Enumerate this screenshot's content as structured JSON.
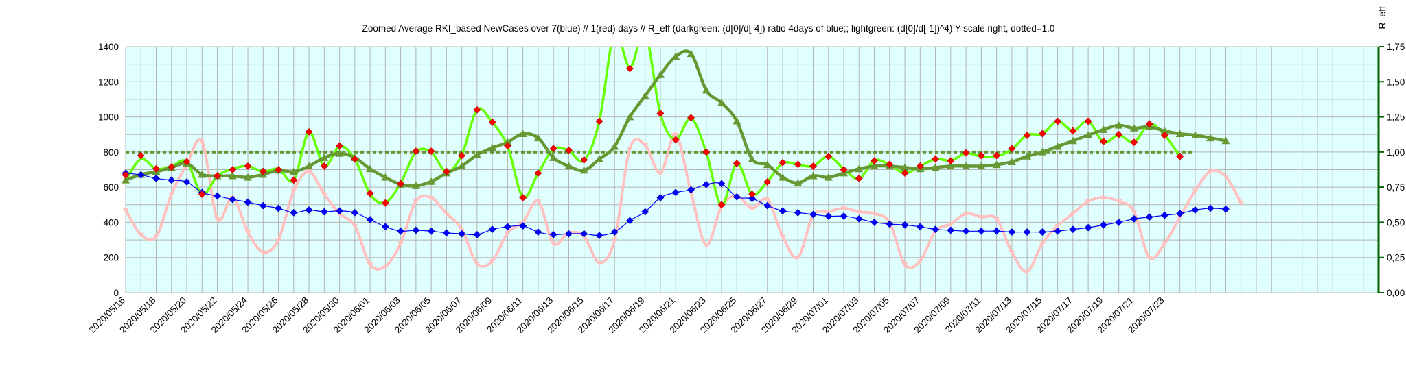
{
  "chart_data": {
    "type": "line",
    "title": "Zoomed Average RKI_based NewCases over 7(blue) // 1(red) days //  R_eff (darkgreen: (d[0]/d[-4]) ratio 4days of blue;; lightgreen: (d[0]/d[-1])^4) Y-scale right, dotted=1.0",
    "y2label": "R_eff",
    "ylim": [
      0,
      1400
    ],
    "y2lim": [
      0,
      1.75
    ],
    "y_ticks": [
      "0",
      "200",
      "400",
      "600",
      "800",
      "1000",
      "1200",
      "1400"
    ],
    "y2_ticks": [
      "0,00",
      "0,25",
      "0,50",
      "0,75",
      "1,00",
      "1,25",
      "1,50",
      "1,75"
    ],
    "x_tick_labels": [
      "2020/05/16",
      "2020/05/18",
      "2020/05/20",
      "2020/05/22",
      "2020/05/24",
      "2020/05/26",
      "2020/05/28",
      "2020/05/30",
      "2020/06/01",
      "2020/06/03",
      "2020/06/05",
      "2020/06/07",
      "2020/06/09",
      "2020/06/11",
      "2020/06/13",
      "2020/06/15",
      "2020/06/17",
      "2020/06/19",
      "2020/06/21",
      "2020/06/23",
      "2020/06/25",
      "2020/06/27",
      "2020/06/29",
      "2020/07/01",
      "2020/07/03",
      "2020/07/05",
      "2020/07/07",
      "2020/07/09",
      "2020/07/11",
      "2020/07/13",
      "2020/07/15",
      "2020/07/17",
      "2020/07/19",
      "2020/07/21",
      "2020/07/23"
    ],
    "x_start": "2020/05/16",
    "x_categories_total": 82,
    "grid": true,
    "dotted_reference_r": 1.0,
    "series": [
      {
        "axis": "left",
        "color": "#0000ff",
        "marker": "diamond",
        "values": [
          680,
          670,
          650,
          640,
          630,
          570,
          550,
          530,
          515,
          495,
          480,
          455,
          470,
          460,
          465,
          455,
          415,
          375,
          350,
          355,
          350,
          340,
          335,
          330,
          360,
          375,
          380,
          345,
          330,
          335,
          335,
          325,
          345,
          410,
          460,
          540,
          570,
          585,
          615,
          620,
          545,
          535,
          495,
          465,
          455,
          445,
          435,
          435,
          420,
          400,
          390,
          385,
          375,
          360,
          355,
          350,
          350,
          350,
          345,
          345,
          345,
          350,
          360,
          370,
          385,
          400,
          420,
          430,
          440,
          450,
          470,
          480,
          475
        ]
      },
      {
        "axis": "left",
        "color": "#ff0000",
        "marker": "diamond",
        "values": [
          670,
          780,
          705,
          715,
          745,
          560,
          665,
          700,
          720,
          690,
          700,
          640,
          915,
          720,
          835,
          760,
          565,
          510,
          620,
          805,
          805,
          690,
          780,
          1040,
          970,
          835,
          540,
          680,
          820,
          810,
          755,
          975,
          1450,
          1275,
          1450,
          1020,
          870,
          995,
          800,
          500,
          735,
          560,
          630,
          740,
          730,
          720,
          775,
          700,
          650,
          750,
          730,
          680,
          720,
          760,
          750,
          795,
          780,
          780,
          820,
          895,
          905,
          975,
          920,
          975,
          860,
          900,
          855,
          960,
          895,
          775
        ]
      },
      {
        "axis": "left",
        "color": "#ffc0c0",
        "marker": "star",
        "values": [
          470,
          330,
          320,
          560,
          730,
          860,
          420,
          540,
          345,
          230,
          300,
          580,
          690,
          560,
          450,
          380,
          160,
          150,
          280,
          520,
          540,
          450,
          360,
          165,
          180,
          340,
          400,
          520,
          280,
          340,
          320,
          170,
          300,
          820,
          840,
          680,
          900,
          570,
          270,
          490,
          550,
          480,
          530,
          320,
          200,
          440,
          460,
          480,
          460,
          450,
          400,
          160,
          180,
          350,
          390,
          450,
          430,
          420,
          230,
          120,
          280,
          380,
          450,
          520,
          540,
          520,
          460,
          200,
          280,
          430,
          580,
          690,
          660,
          510
        ]
      },
      {
        "axis": "right",
        "color": "#66ff00",
        "marker": "none",
        "values": [
          0.8,
          0.95,
          0.88,
          0.9,
          0.93,
          0.7,
          0.83,
          0.88,
          0.9,
          0.86,
          0.88,
          0.8,
          1.14,
          0.9,
          1.04,
          0.95,
          0.7,
          0.64,
          0.78,
          1.0,
          1.0,
          0.86,
          0.98,
          1.3,
          1.21,
          1.04,
          0.68,
          0.85,
          1.02,
          1.01,
          0.94,
          1.22,
          1.85,
          1.6,
          1.85,
          1.27,
          1.09,
          1.24,
          1.0,
          0.62,
          0.92,
          0.7,
          0.79,
          0.92,
          0.91,
          0.9,
          0.97,
          0.88,
          0.81,
          0.94,
          0.91,
          0.85,
          0.9,
          0.95,
          0.94,
          0.99,
          0.97,
          0.97,
          1.02,
          1.12,
          1.13,
          1.22,
          1.15,
          1.22,
          1.07,
          1.12,
          1.07,
          1.2,
          1.12,
          0.97
        ]
      },
      {
        "axis": "right",
        "color": "#669933",
        "marker": "triangle",
        "values": [
          0.8,
          0.84,
          0.86,
          0.89,
          0.92,
          0.84,
          0.83,
          0.83,
          0.82,
          0.84,
          0.87,
          0.86,
          0.9,
          0.96,
          0.99,
          0.96,
          0.88,
          0.82,
          0.77,
          0.76,
          0.79,
          0.85,
          0.9,
          0.98,
          1.03,
          1.07,
          1.13,
          1.1,
          0.96,
          0.9,
          0.87,
          0.95,
          1.04,
          1.25,
          1.4,
          1.55,
          1.68,
          1.7,
          1.44,
          1.35,
          1.22,
          0.95,
          0.91,
          0.82,
          0.78,
          0.83,
          0.82,
          0.85,
          0.88,
          0.9,
          0.9,
          0.89,
          0.88,
          0.89,
          0.9,
          0.9,
          0.9,
          0.91,
          0.93,
          0.97,
          1.0,
          1.04,
          1.08,
          1.12,
          1.16,
          1.19,
          1.17,
          1.18,
          1.15,
          1.13,
          1.12,
          1.1,
          1.08
        ]
      }
    ]
  }
}
